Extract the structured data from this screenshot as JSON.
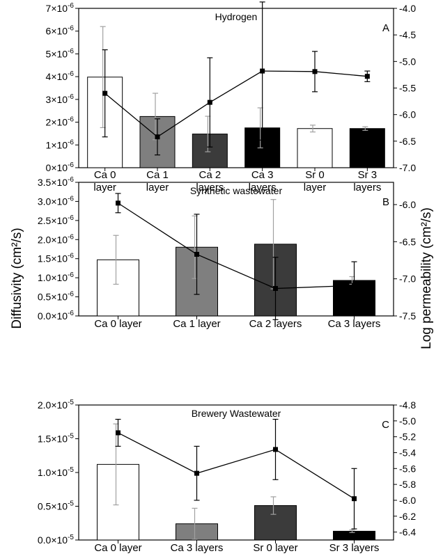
{
  "figure": {
    "ylabel_left": "Diffusivity (cm²/s)",
    "ylabel_right": "Log permeability (cm²/s)"
  },
  "chart_data": [
    {
      "type": "bar",
      "title": "Hydrogen",
      "panel_label": "A",
      "categories": [
        [
          "Ca 0",
          "layer"
        ],
        [
          "Ca 1",
          "layer"
        ],
        [
          "Ca 2",
          "layers"
        ],
        [
          "Ca 3",
          "layers"
        ],
        [
          "Sr 0",
          "layer"
        ],
        [
          "Sr 3",
          "layers"
        ]
      ],
      "bar_colors": [
        "#ffffff",
        "#7f7f7f",
        "#3b3b3b",
        "#000000",
        "#ffffff",
        "#000000"
      ],
      "left_axis": {
        "ylim": [
          0,
          7e-06
        ],
        "ticks": [
          0,
          1e-06,
          2e-06,
          3e-06,
          4e-06,
          5e-06,
          6e-06,
          7e-06
        ],
        "tick_mantissas": [
          "0",
          "1",
          "2",
          "3",
          "4",
          "5",
          "6",
          "7"
        ],
        "tick_exponent": "-6"
      },
      "right_axis": {
        "ylim": [
          -7.0,
          -4.0
        ],
        "ticks": [
          -7.0,
          -6.5,
          -6.0,
          -5.5,
          -5.0,
          -4.5,
          -4.0
        ],
        "tick_labels": [
          "-7.0",
          "-6.5",
          "-6.0",
          "-5.5",
          "-5.0",
          "-4.5",
          "-4.0"
        ]
      },
      "diffusivity": {
        "values": [
          3.98e-06,
          2.25e-06,
          1.48e-06,
          1.75e-06,
          1.72e-06,
          1.72e-06
        ],
        "errors": [
          2.22e-06,
          1.02e-06,
          7.8e-07,
          8.8e-07,
          1.5e-07,
          8e-08
        ]
      },
      "log_permeability": {
        "values": [
          -5.6,
          -6.42,
          -5.77,
          -5.18,
          -5.19,
          -5.28
        ],
        "errors": [
          0.82,
          0.34,
          0.84,
          1.3,
          0.38,
          0.1
        ]
      }
    },
    {
      "type": "bar",
      "title": "Synthetic wastewater",
      "panel_label": "B",
      "categories": [
        [
          "Ca 0 layer"
        ],
        [
          "Ca 1 layer"
        ],
        [
          "Ca 2 layers"
        ],
        [
          "Ca 3 layers"
        ]
      ],
      "bar_colors": [
        "#ffffff",
        "#7f7f7f",
        "#3b3b3b",
        "#000000"
      ],
      "left_axis": {
        "ylim": [
          0,
          3.5e-06
        ],
        "ticks": [
          0,
          5e-07,
          1e-06,
          1.5e-06,
          2e-06,
          2.5e-06,
          3e-06,
          3.5e-06
        ],
        "tick_mantissas": [
          "0.0",
          "0.5",
          "1.0",
          "1.5",
          "2.0",
          "2.5",
          "3.0",
          "3.5"
        ],
        "tick_exponent": "-6"
      },
      "right_axis": {
        "ylim": [
          -7.5,
          -5.7
        ],
        "ticks": [
          -7.5,
          -7.0,
          -6.5,
          -6.0
        ],
        "tick_labels": [
          "-7.5",
          "-7.0",
          "-6.5",
          "-6.0"
        ]
      },
      "diffusivity": {
        "values": [
          1.47e-06,
          1.8e-06,
          1.88e-06,
          9.3e-07
        ],
        "errors": [
          6.4e-07,
          8.2e-07,
          1.17e-06,
          1e-07
        ]
      },
      "log_permeability": {
        "values": [
          -5.98,
          -6.67,
          -7.13,
          -7.09
        ],
        "errors": [
          0.13,
          0.54,
          0.42,
          0.32
        ]
      }
    },
    {
      "type": "bar",
      "title": "Brewery Wastewater",
      "panel_label": "C",
      "categories": [
        [
          "Ca 0 layer"
        ],
        [
          "Ca 3 layers"
        ],
        [
          "Sr 0 layer"
        ],
        [
          "Sr 3 layers"
        ]
      ],
      "bar_colors": [
        "#ffffff",
        "#7f7f7f",
        "#3b3b3b",
        "#000000"
      ],
      "left_axis": {
        "ylim": [
          0,
          2e-05
        ],
        "ticks": [
          0,
          5e-06,
          1e-05,
          1.5e-05,
          2e-05
        ],
        "tick_mantissas": [
          "0.0",
          "0.5",
          "1.0",
          "1.5",
          "2.0"
        ],
        "tick_exponent": "-5"
      },
      "right_axis": {
        "ylim": [
          -6.5,
          -4.8
        ],
        "ticks": [
          -6.4,
          -6.2,
          -6.0,
          -5.8,
          -5.6,
          -5.4,
          -5.2,
          -5.0,
          -4.8
        ],
        "tick_labels": [
          "-6.4",
          "-6.2",
          "-6.0",
          "-5.8",
          "-5.6",
          "-5.4",
          "-5.2",
          "-5.0",
          "-4.8"
        ]
      },
      "diffusivity": {
        "values": [
          1.12e-05,
          2.4e-06,
          5.1e-06,
          1.3e-06
        ],
        "errors": [
          6e-06,
          2.3e-06,
          1.3e-06,
          2e-07
        ]
      },
      "log_permeability": {
        "values": [
          -5.15,
          -5.66,
          -5.36,
          -5.98
        ],
        "errors": [
          0.17,
          0.34,
          0.38,
          0.38
        ]
      }
    }
  ]
}
